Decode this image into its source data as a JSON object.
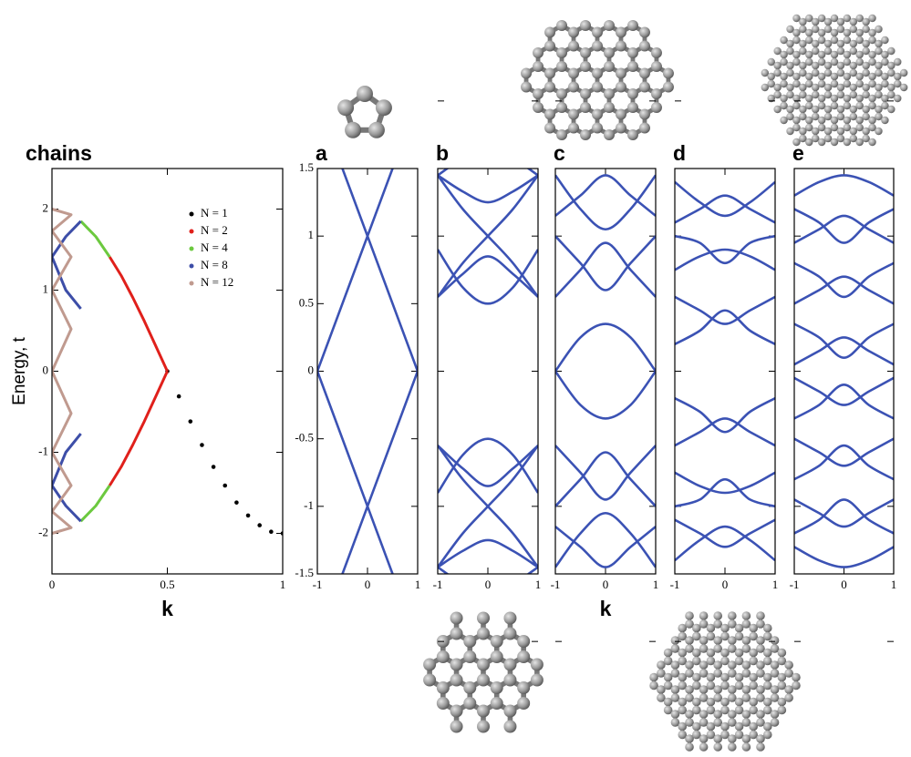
{
  "chart_data": [
    {
      "type": "line",
      "title": "chains",
      "x_label": "k",
      "y_label": "Energy, t",
      "xlim": [
        0,
        1
      ],
      "xticks": [
        0,
        0.5,
        1
      ],
      "ylim": [
        -2.5,
        2.5
      ],
      "yticks": [
        -2,
        -1,
        0,
        1,
        2
      ],
      "legend": "upper right",
      "series": [
        {
          "name": "N = 1",
          "color": "#000000",
          "style": "points",
          "x": [
            0.5,
            0.55,
            0.6,
            0.65,
            0.7,
            0.75,
            0.8,
            0.85,
            0.9,
            0.95,
            1
          ],
          "values": [
            0,
            -0.31,
            -0.62,
            -0.91,
            -1.18,
            -1.41,
            -1.62,
            -1.78,
            -1.9,
            -1.98,
            -2
          ]
        },
        {
          "name": "N = 2",
          "color": "#e0201b",
          "style": "line",
          "x": [
            0.25,
            0.3,
            0.35,
            0.4,
            0.45,
            0.5,
            null,
            0.5,
            0.45,
            0.4,
            0.35,
            0.3,
            0.25
          ],
          "values": [
            1.41,
            1.18,
            0.91,
            0.62,
            0.31,
            0,
            null,
            0,
            -0.31,
            -0.62,
            -0.91,
            -1.18,
            -1.41
          ]
        },
        {
          "name": "N = 4",
          "color": "#6cc93f",
          "style": "line",
          "x": [
            0.125,
            0.19,
            0.25,
            null,
            0.25,
            0.19,
            0.125
          ],
          "values": [
            1.85,
            1.66,
            1.41,
            null,
            -1.41,
            -1.66,
            -1.85
          ]
        },
        {
          "name": "N = 8",
          "color": "#3d4ea8",
          "style": "line",
          "x": [
            0.125,
            0.06,
            0,
            0.06,
            0.125,
            null,
            0.125,
            0.06,
            0,
            0.06,
            0.125
          ],
          "values": [
            1.85,
            1.66,
            1.41,
            1.0,
            0.77,
            null,
            -0.77,
            -1.0,
            -1.41,
            -1.66,
            -1.85
          ]
        },
        {
          "name": "N = 12",
          "color": "#c09a8f",
          "style": "line",
          "x": [
            0,
            0.083,
            0,
            0.083,
            0,
            0.083,
            0,
            0.083,
            0,
            0.083,
            0,
            0.083,
            0
          ],
          "values": [
            2,
            1.93,
            1.73,
            1.41,
            1.0,
            0.52,
            0,
            -0.52,
            -1.0,
            -1.41,
            -1.73,
            -1.93,
            -2
          ]
        }
      ]
    },
    {
      "type": "line",
      "title": "a",
      "xlim": [
        -1,
        1
      ],
      "xticks": [
        -1,
        0,
        1
      ],
      "ylim": [
        -1.5,
        1.5
      ],
      "yticks": [
        -1.5,
        -1,
        -0.5,
        0,
        0.5,
        1,
        1.5
      ],
      "x": [
        -1,
        0,
        1
      ],
      "series": [
        {
          "color": "#3b52b4",
          "values": [
            0,
            1,
            2
          ]
        },
        {
          "color": "#3b52b4",
          "values": [
            2,
            1,
            0
          ]
        },
        {
          "color": "#3b52b4",
          "values": [
            -2,
            -1,
            0
          ]
        },
        {
          "color": "#3b52b4",
          "values": [
            0,
            -1,
            -2
          ]
        }
      ]
    },
    {
      "type": "line",
      "title": "b",
      "xlim": [
        -1,
        1
      ],
      "xticks": [
        -1,
        0,
        1
      ],
      "ylim": [
        -1.5,
        1.5
      ],
      "x": [
        -1,
        -0.5,
        0,
        0.5,
        1
      ],
      "series": [
        {
          "color": "#3b52b4",
          "values": [
            1.45,
            1.33,
            1.25,
            1.33,
            1.45
          ]
        },
        {
          "color": "#3b52b4",
          "values": [
            1.45,
            1.57,
            1.6,
            1.57,
            1.45
          ]
        },
        {
          "color": "#3b52b4",
          "values": [
            0.55,
            0.8,
            1.0,
            1.2,
            1.45
          ]
        },
        {
          "color": "#3b52b4",
          "values": [
            1.45,
            1.2,
            1.0,
            0.8,
            0.55
          ]
        },
        {
          "color": "#3b52b4",
          "values": [
            0.55,
            0.72,
            0.85,
            0.72,
            0.55
          ]
        },
        {
          "color": "#3b52b4",
          "values": [
            0.9,
            0.62,
            0.5,
            0.62,
            0.9
          ]
        },
        {
          "color": "#3b52b4",
          "values": [
            -1.45,
            -1.33,
            -1.25,
            -1.33,
            -1.45
          ]
        },
        {
          "color": "#3b52b4",
          "values": [
            -1.45,
            -1.57,
            -1.6,
            -1.57,
            -1.45
          ]
        },
        {
          "color": "#3b52b4",
          "values": [
            -0.55,
            -0.8,
            -1.0,
            -1.2,
            -1.45
          ]
        },
        {
          "color": "#3b52b4",
          "values": [
            -1.45,
            -1.2,
            -1.0,
            -0.8,
            -0.55
          ]
        },
        {
          "color": "#3b52b4",
          "values": [
            -0.55,
            -0.72,
            -0.85,
            -0.72,
            -0.55
          ]
        },
        {
          "color": "#3b52b4",
          "values": [
            -0.9,
            -0.62,
            -0.5,
            -0.62,
            -0.9
          ]
        }
      ]
    },
    {
      "type": "line",
      "title": "c",
      "x_label": "k",
      "xlim": [
        -1,
        1
      ],
      "xticks": [
        -1,
        0,
        1
      ],
      "ylim": [
        -1.5,
        1.5
      ],
      "x": [
        -1,
        -0.5,
        0,
        0.5,
        1
      ],
      "series": [
        {
          "color": "#3b52b4",
          "values": [
            0.0,
            0.25,
            0.35,
            0.25,
            0.0
          ]
        },
        {
          "color": "#3b52b4",
          "values": [
            0.55,
            0.75,
            0.95,
            0.75,
            0.55
          ]
        },
        {
          "color": "#3b52b4",
          "values": [
            1.0,
            0.8,
            0.6,
            0.8,
            1.0
          ]
        },
        {
          "color": "#3b52b4",
          "values": [
            1.15,
            1.3,
            1.45,
            1.3,
            1.15
          ]
        },
        {
          "color": "#3b52b4",
          "values": [
            1.45,
            1.2,
            1.05,
            1.2,
            1.45
          ]
        },
        {
          "color": "#3b52b4",
          "values": [
            0.0,
            -0.25,
            -0.35,
            -0.25,
            0.0
          ]
        },
        {
          "color": "#3b52b4",
          "values": [
            -0.55,
            -0.75,
            -0.95,
            -0.75,
            -0.55
          ]
        },
        {
          "color": "#3b52b4",
          "values": [
            -1.0,
            -0.8,
            -0.6,
            -0.8,
            -1.0
          ]
        },
        {
          "color": "#3b52b4",
          "values": [
            -1.15,
            -1.3,
            -1.45,
            -1.3,
            -1.15
          ]
        },
        {
          "color": "#3b52b4",
          "values": [
            -1.45,
            -1.2,
            -1.05,
            -1.2,
            -1.45
          ]
        }
      ]
    },
    {
      "type": "line",
      "title": "d",
      "xlim": [
        -1,
        1
      ],
      "xticks": [
        -1,
        0,
        1
      ],
      "ylim": [
        -1.5,
        1.5
      ],
      "x": [
        -1,
        -0.5,
        0,
        0.5,
        1
      ],
      "series": [
        {
          "color": "#3b52b4",
          "values": [
            0.2,
            0.3,
            0.45,
            0.3,
            0.2
          ]
        },
        {
          "color": "#3b52b4",
          "values": [
            0.55,
            0.45,
            0.35,
            0.45,
            0.55
          ]
        },
        {
          "color": "#3b52b4",
          "values": [
            0.75,
            0.85,
            0.9,
            0.85,
            0.75
          ]
        },
        {
          "color": "#3b52b4",
          "values": [
            1.0,
            0.95,
            0.8,
            0.95,
            1.0
          ]
        },
        {
          "color": "#3b52b4",
          "values": [
            1.1,
            1.2,
            1.3,
            1.2,
            1.1
          ]
        },
        {
          "color": "#3b52b4",
          "values": [
            1.4,
            1.25,
            1.15,
            1.25,
            1.4
          ]
        },
        {
          "color": "#3b52b4",
          "values": [
            -0.2,
            -0.3,
            -0.45,
            -0.3,
            -0.2
          ]
        },
        {
          "color": "#3b52b4",
          "values": [
            -0.55,
            -0.45,
            -0.35,
            -0.45,
            -0.55
          ]
        },
        {
          "color": "#3b52b4",
          "values": [
            -0.75,
            -0.85,
            -0.9,
            -0.85,
            -0.75
          ]
        },
        {
          "color": "#3b52b4",
          "values": [
            -1.0,
            -0.95,
            -0.8,
            -0.95,
            -1.0
          ]
        },
        {
          "color": "#3b52b4",
          "values": [
            -1.1,
            -1.2,
            -1.3,
            -1.2,
            -1.1
          ]
        },
        {
          "color": "#3b52b4",
          "values": [
            -1.4,
            -1.25,
            -1.15,
            -1.25,
            -1.4
          ]
        }
      ]
    },
    {
      "type": "line",
      "title": "e",
      "xlim": [
        -1,
        1
      ],
      "xticks": [
        -1,
        0,
        1
      ],
      "ylim": [
        -1.5,
        1.5
      ],
      "x": [
        -1,
        -0.5,
        0,
        0.5,
        1
      ],
      "series": [
        {
          "color": "#3b52b4",
          "values": [
            0.05,
            0.15,
            0.25,
            0.15,
            0.05
          ]
        },
        {
          "color": "#3b52b4",
          "values": [
            0.35,
            0.25,
            0.1,
            0.25,
            0.35
          ]
        },
        {
          "color": "#3b52b4",
          "values": [
            0.5,
            0.6,
            0.7,
            0.6,
            0.5
          ]
        },
        {
          "color": "#3b52b4",
          "values": [
            0.8,
            0.7,
            0.55,
            0.7,
            0.8
          ]
        },
        {
          "color": "#3b52b4",
          "values": [
            0.95,
            1.05,
            1.15,
            1.05,
            0.95
          ]
        },
        {
          "color": "#3b52b4",
          "values": [
            1.2,
            1.1,
            0.95,
            1.1,
            1.2
          ]
        },
        {
          "color": "#3b52b4",
          "values": [
            1.3,
            1.4,
            1.45,
            1.4,
            1.3
          ]
        },
        {
          "color": "#3b52b4",
          "values": [
            -0.05,
            -0.15,
            -0.25,
            -0.15,
            -0.05
          ]
        },
        {
          "color": "#3b52b4",
          "values": [
            -0.35,
            -0.25,
            -0.1,
            -0.25,
            -0.35
          ]
        },
        {
          "color": "#3b52b4",
          "values": [
            -0.5,
            -0.6,
            -0.7,
            -0.6,
            -0.5
          ]
        },
        {
          "color": "#3b52b4",
          "values": [
            -0.8,
            -0.7,
            -0.55,
            -0.7,
            -0.8
          ]
        },
        {
          "color": "#3b52b4",
          "values": [
            -0.95,
            -1.05,
            -1.15,
            -1.05,
            -0.95
          ]
        },
        {
          "color": "#3b52b4",
          "values": [
            -1.2,
            -1.1,
            -0.95,
            -1.1,
            -1.2
          ]
        },
        {
          "color": "#3b52b4",
          "values": [
            -1.3,
            -1.4,
            -1.45,
            -1.4,
            -1.3
          ]
        }
      ]
    }
  ]
}
